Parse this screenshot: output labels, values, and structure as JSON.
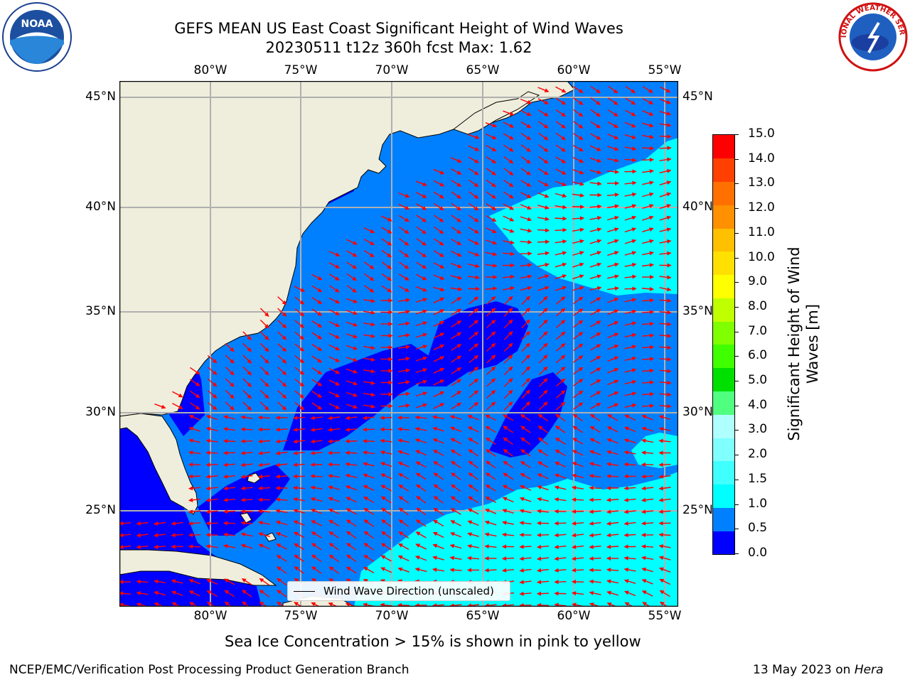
{
  "title_line1": "GEFS MEAN US East Coast Significant Height of Wind Waves",
  "title_line2": "20230511 t12z 360h fcst   Max: 1.62",
  "lon_labels": [
    "80°W",
    "75°W",
    "70°W",
    "65°W",
    "60°W",
    "55°W"
  ],
  "lat_labels": [
    "45°N",
    "40°N",
    "35°N",
    "30°N",
    "25°N"
  ],
  "legend_label": "Wind Wave Direction (unscaled)",
  "colorbar": {
    "label": "Significant Height of Wind Waves [m]",
    "ticks": [
      "15.0",
      "14.0",
      "13.0",
      "12.0",
      "11.0",
      "10.0",
      "9.0",
      "8.0",
      "7.0",
      "6.0",
      "5.0",
      "4.0",
      "3.0",
      "2.0",
      "1.5",
      "1.0",
      "0.5",
      "0.0"
    ],
    "colors": [
      "#0000ff",
      "#0080ff",
      "#00ffff",
      "#40ffff",
      "#80ffff",
      "#b0ffff",
      "#50ff80",
      "#00e000",
      "#40ff00",
      "#80ff00",
      "#c0ff00",
      "#ffff00",
      "#ffe000",
      "#ffc000",
      "#ff9000",
      "#ff7000",
      "#ff4000",
      "#ff0000"
    ]
  },
  "caption": "Sea Ice Concentration > 15% is shown in pink to yellow",
  "footer_left": "NCEP/EMC/Verification Post Processing Product Generation Branch",
  "footer_right_prefix": "13 May 2023 on",
  "footer_right_host": "Hera",
  "logos": {
    "left": "NOAA",
    "right": "NATIONAL WEATHER SERVICE"
  },
  "colors": {
    "land": "#efeedc",
    "arrow": "#ff0000",
    "grid": "#b0b0b0"
  }
}
